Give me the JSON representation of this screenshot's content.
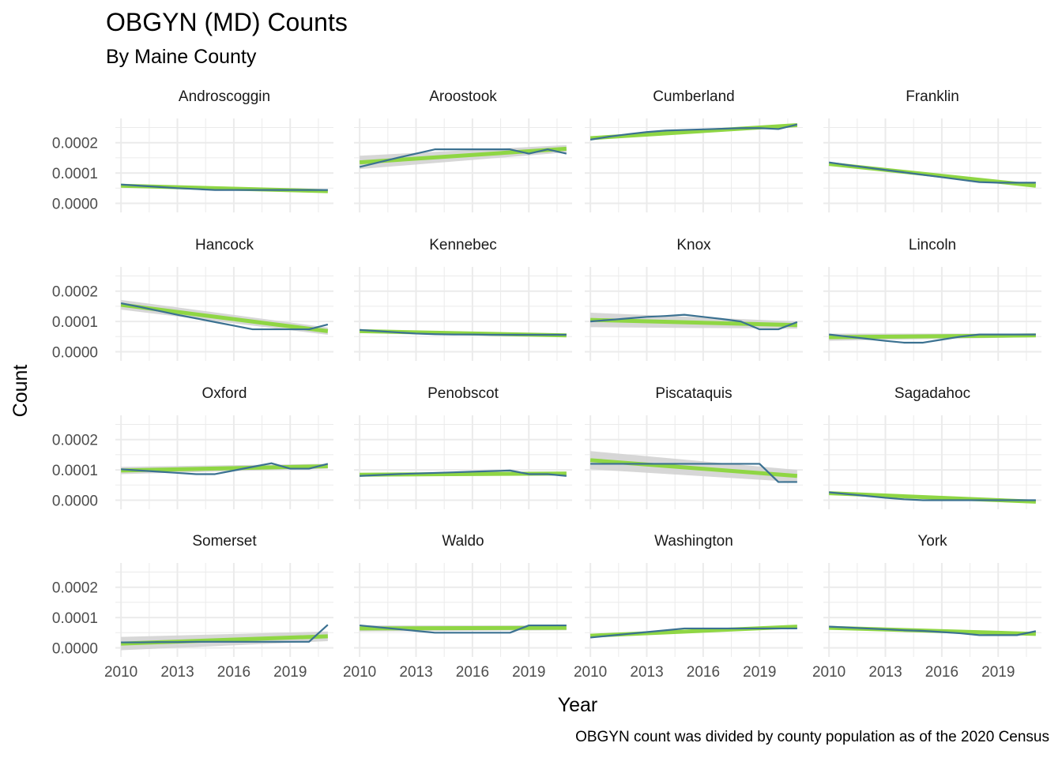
{
  "chart_data": {
    "type": "line",
    "title": "OBGYN (MD) Counts",
    "subtitle": "By Maine County",
    "caption": "OBGYN count was divided by county population as of the 2020 Census",
    "xlabel": "Year",
    "ylabel": "Count",
    "xlim": [
      2009.7,
      2021.3
    ],
    "ylim": [
      -3e-05,
      0.00028
    ],
    "x_ticks": [
      2010,
      2013,
      2016,
      2019
    ],
    "y_ticks": [
      0.0,
      0.0001,
      0.0002
    ],
    "y_tick_labels": [
      "0.0000",
      "0.0001",
      "0.0002"
    ],
    "grid": true,
    "colors": {
      "line": "#3b7191",
      "smooth": "#8fd644",
      "ribbon": "#d3d3d3",
      "grid": "#ebebeb"
    },
    "years": [
      2010,
      2011,
      2012,
      2013,
      2014,
      2015,
      2016,
      2017,
      2018,
      2019,
      2020,
      2021
    ],
    "facets": [
      {
        "name": "Androscoggin",
        "values": [
          6.2e-05,
          5.8e-05,
          5.4e-05,
          5e-05,
          4.7e-05,
          4.4e-05,
          4.4e-05,
          4.4e-05,
          4.4e-05,
          4.4e-05,
          4.4e-05,
          4.4e-05
        ],
        "trend": [
          5.8e-05,
          4e-05
        ],
        "band": [
          4e-06,
          4e-06
        ]
      },
      {
        "name": "Aroostook",
        "values": [
          0.00012,
          0.000135,
          0.00015,
          0.000164,
          0.000178,
          0.000178,
          0.000178,
          0.000178,
          0.000178,
          0.000164,
          0.000178,
          0.000164
        ],
        "trend": [
          0.000135,
          0.00018
        ],
        "band": [
          2.2e-05,
          1.2e-05
        ]
      },
      {
        "name": "Cumberland",
        "values": [
          0.00021,
          0.00022,
          0.000228,
          0.000235,
          0.00024,
          0.000242,
          0.000244,
          0.000246,
          0.000248,
          0.000248,
          0.000245,
          0.00026
        ],
        "trend": [
          0.000215,
          0.000258
        ],
        "band": [
          5e-06,
          5e-06
        ]
      },
      {
        "name": "Franklin",
        "values": [
          0.000135,
          0.000126,
          0.000118,
          0.00011,
          0.000102,
          9.4e-05,
          8.6e-05,
          7.8e-05,
          7e-05,
          6.8e-05,
          6.8e-05,
          6.8e-05
        ],
        "trend": [
          0.00013,
          5.8e-05
        ],
        "band": [
          4e-06,
          4e-06
        ]
      },
      {
        "name": "Hancock",
        "values": [
          0.00016,
          0.000148,
          0.000135,
          0.000122,
          0.00011,
          9.8e-05,
          8.6e-05,
          7.4e-05,
          7.4e-05,
          7.4e-05,
          7.4e-05,
          9e-05
        ],
        "trend": [
          0.000155,
          6.8e-05
        ],
        "band": [
          1.6e-05,
          1.2e-05
        ]
      },
      {
        "name": "Kennebec",
        "values": [
          7.2e-05,
          6.8e-05,
          6.4e-05,
          6e-05,
          5.8e-05,
          5.7e-05,
          5.7e-05,
          5.6e-05,
          5.6e-05,
          5.6e-05,
          5.6e-05,
          5.6e-05
        ],
        "trend": [
          6.8e-05,
          5.4e-05
        ],
        "band": [
          4e-06,
          4e-06
        ]
      },
      {
        "name": "Knox",
        "values": [
          0.0001,
          0.000105,
          0.00011,
          0.000115,
          0.000118,
          0.000122,
          0.000115,
          0.000108,
          0.0001,
          7.4e-05,
          7.4e-05,
          9.8e-05
        ],
        "trend": [
          0.000105,
          8.8e-05
        ],
        "band": [
          2.4e-05,
          1.2e-05
        ]
      },
      {
        "name": "Lincoln",
        "values": [
          5.7e-05,
          5e-05,
          4.3e-05,
          3.6e-05,
          3e-05,
          3e-05,
          4e-05,
          5e-05,
          5.7e-05,
          5.7e-05,
          5.7e-05,
          5.7e-05
        ],
        "trend": [
          4.8e-05,
          5.4e-05
        ],
        "band": [
          1.2e-05,
          6e-06
        ]
      },
      {
        "name": "Oxford",
        "values": [
          0.000102,
          9.8e-05,
          9.4e-05,
          9e-05,
          8.6e-05,
          8.6e-05,
          9.8e-05,
          0.00011,
          0.000122,
          0.000104,
          0.000104,
          0.00012
        ],
        "trend": [
          9.8e-05,
          0.000112
        ],
        "band": [
          1.2e-05,
          8e-06
        ]
      },
      {
        "name": "Penobscot",
        "values": [
          8e-05,
          8.3e-05,
          8.6e-05,
          8.8e-05,
          9e-05,
          9.2e-05,
          9.4e-05,
          9.6e-05,
          9.8e-05,
          8.6e-05,
          8.6e-05,
          8e-05
        ],
        "trend": [
          8.4e-05,
          8.8e-05
        ],
        "band": [
          6e-06,
          6e-06
        ]
      },
      {
        "name": "Piscataquis",
        "values": [
          0.00012,
          0.00012,
          0.00012,
          0.00012,
          0.00012,
          0.00012,
          0.00012,
          0.00012,
          0.00012,
          0.00012,
          6e-05,
          6e-05
        ],
        "trend": [
          0.000132,
          8e-05
        ],
        "band": [
          3e-05,
          2e-05
        ]
      },
      {
        "name": "Sagadahoc",
        "values": [
          2.6e-05,
          2e-05,
          1.4e-05,
          8e-06,
          3e-06,
          0.0,
          0.0,
          0.0,
          0.0,
          0.0,
          0.0,
          0.0
        ],
        "trend": [
          2.3e-05,
          -5e-06
        ],
        "band": [
          4e-06,
          4e-06
        ]
      },
      {
        "name": "Somerset",
        "values": [
          1.8e-05,
          1.8e-05,
          1.9e-05,
          1.9e-05,
          2e-05,
          2e-05,
          2e-05,
          2e-05,
          2e-05,
          2e-05,
          2e-05,
          7.6e-05
        ],
        "trend": [
          1.4e-05,
          3.8e-05
        ],
        "band": [
          2.2e-05,
          1.6e-05
        ]
      },
      {
        "name": "Waldo",
        "values": [
          7.4e-05,
          6.8e-05,
          6.2e-05,
          5.6e-05,
          5e-05,
          5e-05,
          5e-05,
          5e-05,
          5e-05,
          7.4e-05,
          7.4e-05,
          7.4e-05
        ],
        "trend": [
          6.4e-05,
          6.6e-05
        ],
        "band": [
          1e-05,
          8e-06
        ]
      },
      {
        "name": "Washington",
        "values": [
          3.4e-05,
          4e-05,
          4.6e-05,
          5.2e-05,
          5.8e-05,
          6.4e-05,
          6.4e-05,
          6.4e-05,
          6.4e-05,
          6.4e-05,
          6.4e-05,
          6.4e-05
        ],
        "trend": [
          4e-05,
          7e-05
        ],
        "band": [
          5e-06,
          5e-06
        ]
      },
      {
        "name": "York",
        "values": [
          7e-05,
          6.7e-05,
          6.4e-05,
          6.1e-05,
          5.8e-05,
          5.6e-05,
          5.2e-05,
          4.8e-05,
          4.2e-05,
          4.2e-05,
          4.2e-05,
          5.5e-05
        ],
        "trend": [
          6.6e-05,
          4.6e-05
        ],
        "band": [
          5e-06,
          5e-06
        ]
      }
    ]
  }
}
